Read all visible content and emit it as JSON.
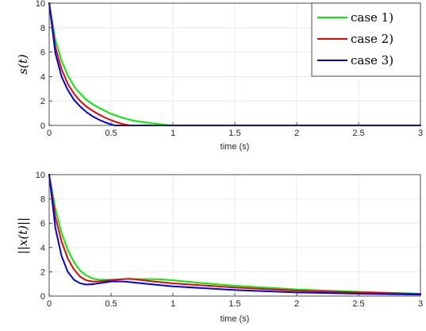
{
  "chart_data": [
    {
      "type": "line",
      "ylabel": "s(t)",
      "xlabel": "time (s)",
      "xlim": [
        0,
        3
      ],
      "ylim": [
        0,
        10
      ],
      "xticks": [
        "0",
        "0.5",
        "1",
        "1.5",
        "2",
        "2.5",
        "3"
      ],
      "yticks": [
        "0",
        "2",
        "4",
        "6",
        "8",
        "10"
      ],
      "grid": true,
      "legend": "top-right",
      "series": [
        {
          "name": "case 1)",
          "color": "#00ee00",
          "x": [
            0,
            0.05,
            0.1,
            0.15,
            0.2,
            0.25,
            0.3,
            0.35,
            0.4,
            0.5,
            0.6,
            0.7,
            0.8,
            0.9,
            0.95,
            1.0,
            1.5,
            2.0,
            2.5,
            3.0
          ],
          "y": [
            10,
            7.0,
            5.3,
            4.1,
            3.2,
            2.6,
            2.1,
            1.75,
            1.45,
            0.95,
            0.6,
            0.35,
            0.22,
            0.1,
            0.03,
            0,
            0,
            0,
            0,
            0
          ]
        },
        {
          "name": "case 2)",
          "color": "#ee0000",
          "x": [
            0,
            0.05,
            0.1,
            0.15,
            0.2,
            0.25,
            0.3,
            0.35,
            0.4,
            0.45,
            0.5,
            0.55,
            0.6,
            0.65,
            1.0,
            1.5,
            2.0,
            2.5,
            3.0
          ],
          "y": [
            10,
            6.4,
            4.6,
            3.4,
            2.6,
            2.0,
            1.55,
            1.2,
            0.9,
            0.65,
            0.43,
            0.25,
            0.1,
            0,
            0,
            0,
            0,
            0,
            0
          ]
        },
        {
          "name": "case 3)",
          "color": "#0000ee",
          "x": [
            0,
            0.05,
            0.1,
            0.15,
            0.2,
            0.25,
            0.3,
            0.35,
            0.4,
            0.45,
            0.5,
            0.53,
            1.0,
            1.5,
            2.0,
            2.5,
            3.0
          ],
          "y": [
            10,
            5.9,
            4.0,
            2.9,
            2.1,
            1.55,
            1.1,
            0.75,
            0.48,
            0.26,
            0.08,
            0,
            0,
            0,
            0,
            0,
            0
          ]
        }
      ]
    },
    {
      "type": "line",
      "ylabel": "||x(t)||",
      "xlabel": "time (s)",
      "xlim": [
        0,
        3
      ],
      "ylim": [
        0,
        10
      ],
      "xticks": [
        "0",
        "0.5",
        "1",
        "1.5",
        "2",
        "2.5",
        "3"
      ],
      "yticks": [
        "0",
        "2",
        "4",
        "6",
        "8",
        "10"
      ],
      "grid": true,
      "series": [
        {
          "name": "case 1)",
          "color": "#00ee00",
          "x": [
            0,
            0.05,
            0.1,
            0.15,
            0.2,
            0.25,
            0.3,
            0.35,
            0.4,
            0.5,
            0.6,
            0.7,
            0.8,
            0.9,
            1.0,
            1.2,
            1.5,
            2.0,
            2.5,
            3.0
          ],
          "y": [
            10,
            7.2,
            5.2,
            3.8,
            2.8,
            2.1,
            1.7,
            1.45,
            1.35,
            1.35,
            1.4,
            1.4,
            1.4,
            1.38,
            1.3,
            1.1,
            0.85,
            0.55,
            0.35,
            0.2
          ]
        },
        {
          "name": "case 2)",
          "color": "#ee0000",
          "x": [
            0,
            0.05,
            0.1,
            0.15,
            0.2,
            0.25,
            0.3,
            0.35,
            0.4,
            0.5,
            0.6,
            0.65,
            0.7,
            0.8,
            1.0,
            1.5,
            2.0,
            2.5,
            3.0
          ],
          "y": [
            10,
            6.5,
            4.5,
            3.1,
            2.2,
            1.6,
            1.3,
            1.2,
            1.2,
            1.3,
            1.4,
            1.42,
            1.38,
            1.25,
            1.05,
            0.7,
            0.45,
            0.3,
            0.18
          ]
        },
        {
          "name": "case 3)",
          "color": "#0000ee",
          "x": [
            0,
            0.05,
            0.1,
            0.15,
            0.2,
            0.25,
            0.3,
            0.35,
            0.4,
            0.5,
            0.6,
            0.7,
            0.8,
            1.0,
            1.5,
            2.0,
            2.5,
            3.0
          ],
          "y": [
            10,
            5.6,
            3.3,
            2.0,
            1.35,
            1.05,
            0.95,
            0.98,
            1.05,
            1.2,
            1.2,
            1.1,
            1.0,
            0.8,
            0.5,
            0.3,
            0.2,
            0.12
          ]
        }
      ]
    }
  ]
}
